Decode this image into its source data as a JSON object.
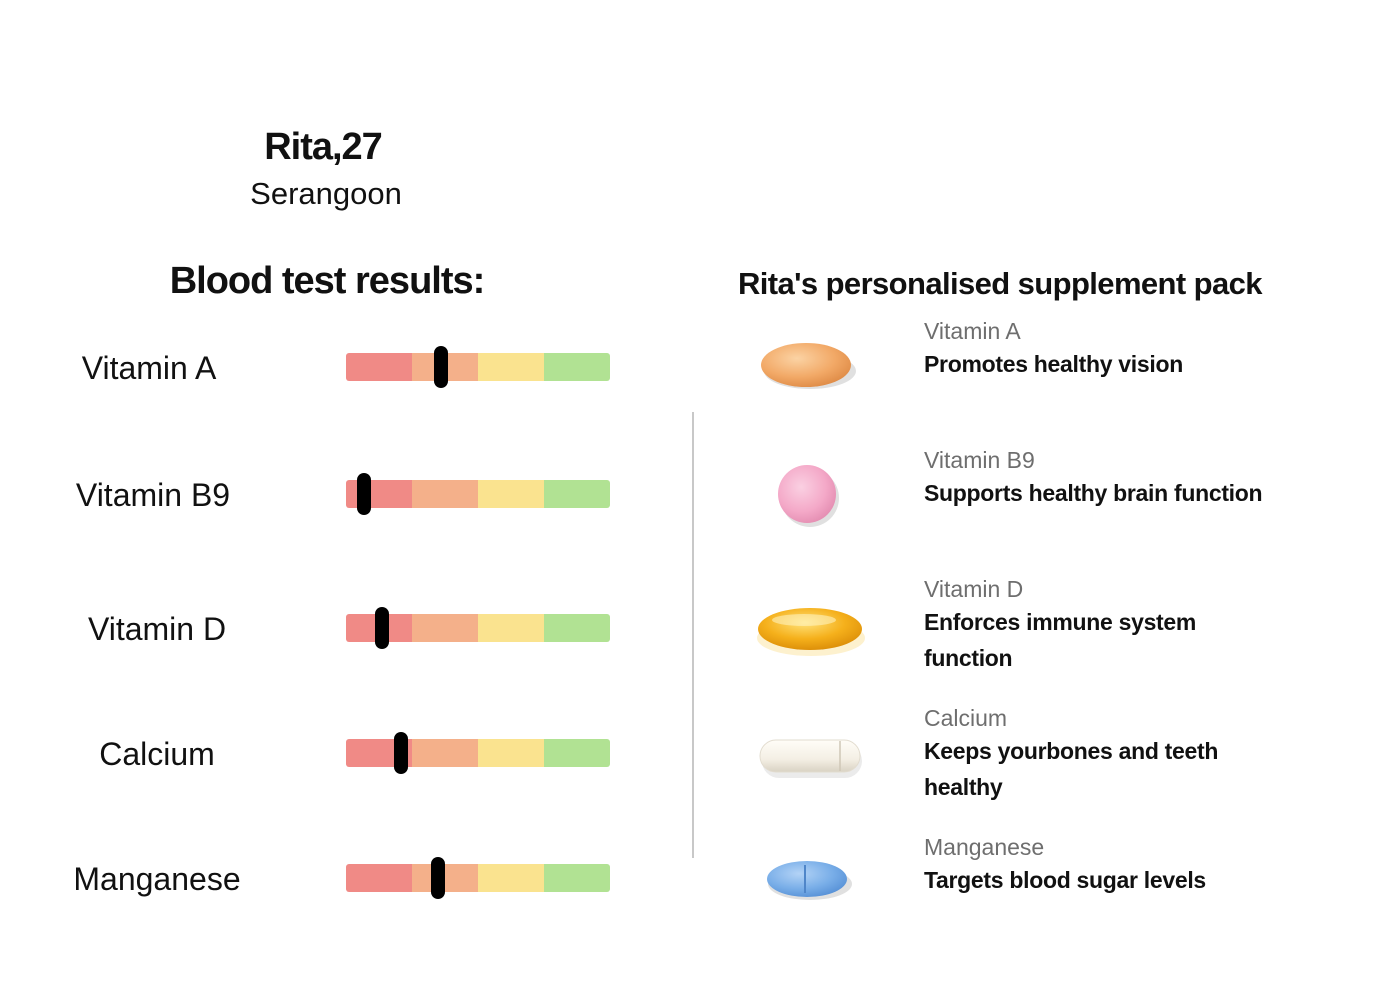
{
  "profile": {
    "name": "Rita,27",
    "location": "Serangoon"
  },
  "blood_test": {
    "title": "Blood test results:",
    "scale_colors": [
      "#f08a86",
      "#f4b08a",
      "#fae38f",
      "#b1e293"
    ],
    "items": [
      {
        "label": "Vitamin A",
        "level": 0.36
      },
      {
        "label": "Vitamin B9",
        "level": 0.07
      },
      {
        "label": "Vitamin D",
        "level": 0.135
      },
      {
        "label": "Calcium",
        "level": 0.21
      },
      {
        "label": "Manganese",
        "level": 0.35
      }
    ]
  },
  "supplement_pack": {
    "title": "Rita's personalised supplement pack",
    "items": [
      {
        "name": "Vitamin A",
        "description": "Promotes healthy vision",
        "pill_icon": "orange-oval-tablet-icon",
        "pill_color": "#f2a967"
      },
      {
        "name": "Vitamin B9",
        "description": "Supports healthy brain function",
        "pill_icon": "pink-round-tablet-icon",
        "pill_color": "#f4a9c8"
      },
      {
        "name": "Vitamin D",
        "description": "Enforces immune system function",
        "pill_icon": "yellow-softgel-icon",
        "pill_color": "#f5b01b"
      },
      {
        "name": "Calcium",
        "description": "Keeps yourbones and teeth healthy",
        "pill_icon": "white-capsule-icon",
        "pill_color": "#f4efe4"
      },
      {
        "name": "Manganese",
        "description": "Targets blood sugar levels",
        "pill_icon": "blue-scored-tablet-icon",
        "pill_color": "#79aee8"
      }
    ]
  }
}
